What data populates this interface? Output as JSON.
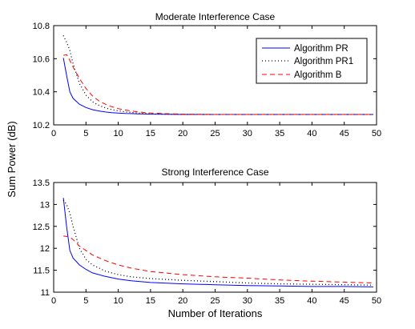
{
  "figure": {
    "shared_ylabel": "Sum Power (dB)",
    "shared_xlabel": "Number of Iterations"
  },
  "legend_labels": [
    "Algorithm PR",
    "Algorithm PR1",
    "Algorithm B"
  ],
  "chart_data": [
    {
      "type": "line",
      "title": "Moderate Interference Case",
      "xlabel": "",
      "ylabel": "",
      "xlim": [
        0,
        50
      ],
      "ylim": [
        10.2,
        10.8
      ],
      "xticks": [
        "0",
        "5",
        "10",
        "15",
        "20",
        "25",
        "30",
        "35",
        "40",
        "45",
        "50"
      ],
      "yticks": [
        "10.2",
        "10.4",
        "10.6",
        "10.8"
      ],
      "grid": false,
      "legend": "top-right",
      "x": [
        1.5,
        2,
        2.5,
        3,
        4,
        5,
        6,
        7,
        8,
        9,
        10,
        11,
        12,
        13,
        14,
        15,
        17,
        20,
        25,
        30,
        35,
        40,
        45,
        49.5
      ],
      "series": [
        {
          "name": "Algorithm PR",
          "color": "#0000ff",
          "dash": "solid",
          "values": [
            10.605,
            10.5,
            10.4,
            10.36,
            10.325,
            10.305,
            10.292,
            10.284,
            10.278,
            10.274,
            10.271,
            10.269,
            10.268,
            10.267,
            10.266,
            10.265,
            10.264,
            10.263,
            10.263,
            10.263,
            10.263,
            10.263,
            10.263,
            10.263
          ]
        },
        {
          "name": "Algorithm PR1",
          "color": "#000000",
          "dash": "dotted",
          "values": [
            10.74,
            10.7,
            10.65,
            10.57,
            10.45,
            10.38,
            10.34,
            10.318,
            10.303,
            10.292,
            10.285,
            10.279,
            10.275,
            10.272,
            10.269,
            10.267,
            10.265,
            10.264,
            10.263,
            10.263,
            10.263,
            10.263,
            10.263,
            10.263
          ]
        },
        {
          "name": "Algorithm B",
          "color": "#ff0000",
          "dash": "dashed",
          "values": [
            10.62,
            10.625,
            10.59,
            10.55,
            10.48,
            10.42,
            10.375,
            10.345,
            10.325,
            10.31,
            10.298,
            10.29,
            10.284,
            10.279,
            10.275,
            10.272,
            10.268,
            10.265,
            10.263,
            10.263,
            10.263,
            10.263,
            10.263,
            10.263
          ]
        }
      ]
    },
    {
      "type": "line",
      "title": "Strong Interference Case",
      "xlabel": "Number of Iterations",
      "ylabel": "",
      "xlim": [
        0,
        50
      ],
      "ylim": [
        11,
        13.5
      ],
      "xticks": [
        "0",
        "5",
        "10",
        "15",
        "20",
        "25",
        "30",
        "35",
        "40",
        "45",
        "50"
      ],
      "yticks": [
        "11",
        "11.5",
        "12",
        "12.5",
        "13",
        "13.5"
      ],
      "grid": false,
      "legend": "none",
      "x": [
        1.5,
        2,
        2.5,
        3,
        4,
        5,
        6,
        8,
        10,
        12,
        15,
        20,
        25,
        30,
        35,
        40,
        45,
        49.5
      ],
      "series": [
        {
          "name": "Algorithm PR",
          "color": "#0000ff",
          "dash": "solid",
          "values": [
            13.15,
            12.5,
            11.95,
            11.78,
            11.62,
            11.52,
            11.44,
            11.36,
            11.3,
            11.26,
            11.22,
            11.19,
            11.17,
            11.15,
            11.14,
            11.13,
            11.13,
            11.12
          ]
        },
        {
          "name": "Algorithm PR1",
          "color": "#000000",
          "dash": "dotted",
          "values": [
            13.1,
            13.0,
            12.8,
            12.5,
            12.0,
            11.75,
            11.62,
            11.48,
            11.4,
            11.35,
            11.31,
            11.27,
            11.24,
            11.21,
            11.19,
            11.18,
            11.17,
            11.16
          ]
        },
        {
          "name": "Algorithm B",
          "color": "#ff0000",
          "dash": "dashed",
          "values": [
            12.28,
            12.27,
            12.25,
            12.2,
            12.05,
            11.95,
            11.85,
            11.72,
            11.62,
            11.55,
            11.47,
            11.4,
            11.35,
            11.32,
            11.28,
            11.25,
            11.23,
            11.21
          ]
        }
      ]
    }
  ]
}
